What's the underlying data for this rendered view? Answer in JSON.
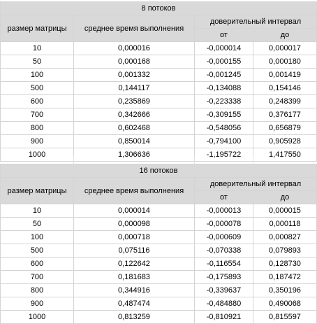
{
  "tables": [
    {
      "title": "8 потоков",
      "headers": {
        "size": "размер матрицы",
        "mean": "среднее время выполнения",
        "ci": "доверительный интервал",
        "from": "от",
        "to": "до"
      },
      "rows": [
        {
          "size": "10",
          "mean": "0,000016",
          "from": "-0,000014",
          "to": "0,000017"
        },
        {
          "size": "50",
          "mean": "0,000168",
          "from": "-0,000155",
          "to": "0,000180"
        },
        {
          "size": "100",
          "mean": "0,001332",
          "from": "-0,001245",
          "to": "0,001419"
        },
        {
          "size": "500",
          "mean": "0,144117",
          "from": "-0,134088",
          "to": "0,154146"
        },
        {
          "size": "600",
          "mean": "0,235869",
          "from": "-0,223338",
          "to": "0,248399"
        },
        {
          "size": "700",
          "mean": "0,342666",
          "from": "-0,309155",
          "to": "0,376177"
        },
        {
          "size": "800",
          "mean": "0,602468",
          "from": "-0,548056",
          "to": "0,656879"
        },
        {
          "size": "900",
          "mean": "0,850014",
          "from": "-0,794100",
          "to": "0,905928"
        },
        {
          "size": "1000",
          "mean": "1,306636",
          "from": "-1,195722",
          "to": "1,417550"
        }
      ]
    },
    {
      "title": "16 потоков",
      "headers": {
        "size": "размер матрицы",
        "mean": "среднее время выполнения",
        "ci": "доверительный интервал",
        "from": "от",
        "to": "до"
      },
      "rows": [
        {
          "size": "10",
          "mean": "0,000014",
          "from": "-0,000013",
          "to": "0,000015"
        },
        {
          "size": "50",
          "mean": "0,000098",
          "from": "-0,000078",
          "to": "0,000118"
        },
        {
          "size": "100",
          "mean": "0,000718",
          "from": "-0,000609",
          "to": "0,000827"
        },
        {
          "size": "500",
          "mean": "0,075116",
          "from": "-0,070338",
          "to": "0,079893"
        },
        {
          "size": "600",
          "mean": "0,122642",
          "from": "-0,116554",
          "to": "0,128730"
        },
        {
          "size": "700",
          "mean": "0,181683",
          "from": "-0,175893",
          "to": "0,187472"
        },
        {
          "size": "800",
          "mean": "0,344916",
          "from": "-0,339637",
          "to": "0,350196"
        },
        {
          "size": "900",
          "mean": "0,487474",
          "from": "-0,484880",
          "to": "0,490068"
        },
        {
          "size": "1000",
          "mean": "0,813259",
          "from": "-0,810921",
          "to": "0,815597"
        }
      ]
    }
  ]
}
